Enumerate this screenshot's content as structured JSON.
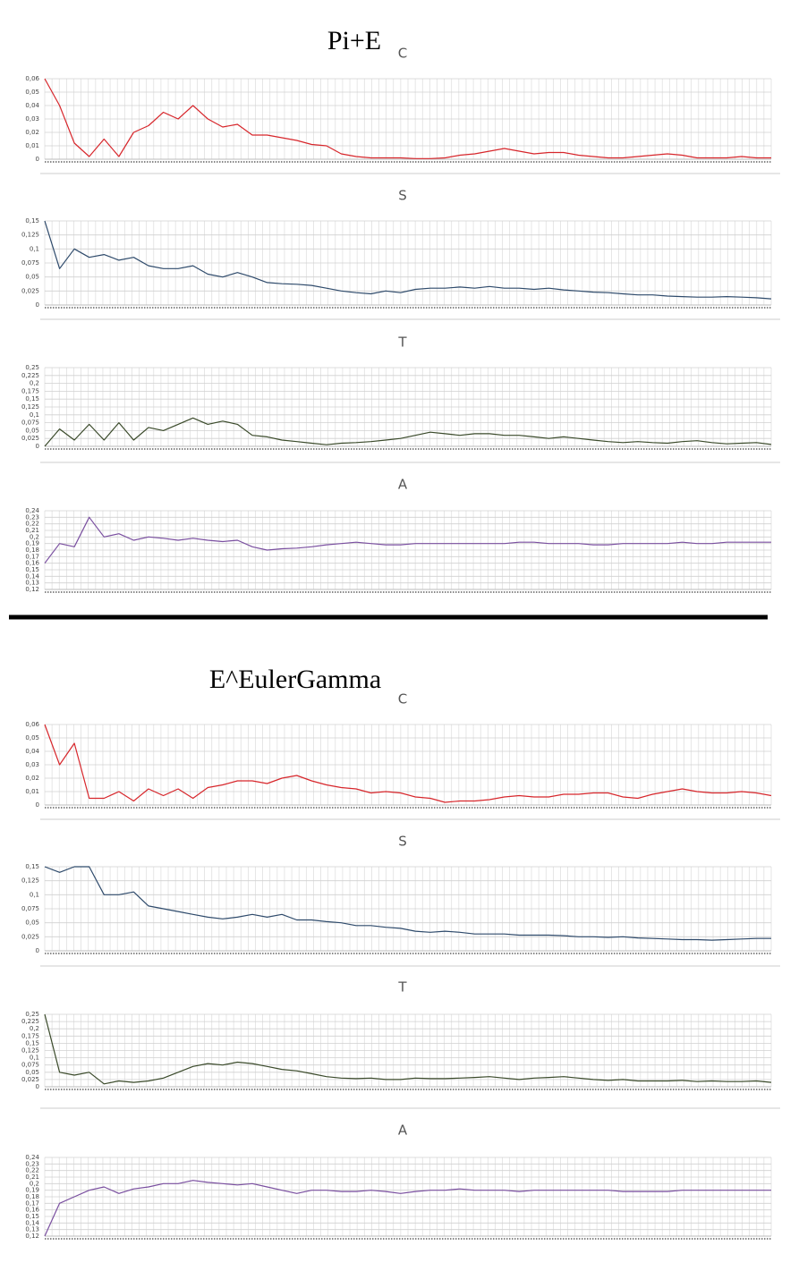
{
  "headings": [
    "Pi+E",
    "E^EulerGamma"
  ],
  "chart_data": [
    {
      "type": "line",
      "title": "C",
      "ylim": [
        0,
        0.06
      ],
      "grid": true,
      "yticks": [
        0,
        {
          "value": 0.01,
          "label": "0,01"
        },
        {
          "value": 0.02,
          "label": "0,02"
        },
        {
          "value": 0.03,
          "label": "0,03"
        },
        {
          "value": 0.04,
          "label": "0,04"
        },
        {
          "value": 0.05,
          "label": "0,05"
        },
        {
          "value": 0.06,
          "label": "0,06"
        }
      ],
      "series": [
        {
          "color": "#d7262b",
          "values": [
            0.06,
            0.04,
            0.012,
            0.002,
            0.015,
            0.002,
            0.02,
            0.025,
            0.035,
            0.03,
            0.04,
            0.03,
            0.024,
            0.026,
            0.018,
            0.018,
            0.016,
            0.014,
            0.011,
            0.01,
            0.004,
            0.002,
            0.001,
            0.001,
            0.001,
            0.0005,
            0.0005,
            0.001,
            0.003,
            0.004,
            0.006,
            0.008,
            0.006,
            0.004,
            0.005,
            0.005,
            0.003,
            0.002,
            0.001,
            0.001,
            0.002,
            0.003,
            0.004,
            0.003,
            0.001,
            0.001,
            0.001,
            0.002,
            0.001,
            0.001
          ]
        }
      ]
    },
    {
      "type": "line",
      "title": "S",
      "ylim": [
        0,
        0.15
      ],
      "grid": true,
      "yticks": [
        0,
        {
          "value": 0.025,
          "label": "0,025"
        },
        {
          "value": 0.05,
          "label": "0,05"
        },
        {
          "value": 0.075,
          "label": "0,075"
        },
        {
          "value": 0.1,
          "label": "0,1"
        },
        {
          "value": 0.125,
          "label": "0,125"
        },
        {
          "value": 0.15,
          "label": "0,15"
        }
      ],
      "series": [
        {
          "color": "#2e4a6b",
          "values": [
            0.15,
            0.065,
            0.1,
            0.085,
            0.09,
            0.08,
            0.085,
            0.07,
            0.065,
            0.065,
            0.07,
            0.055,
            0.05,
            0.058,
            0.05,
            0.04,
            0.038,
            0.037,
            0.035,
            0.03,
            0.025,
            0.022,
            0.02,
            0.025,
            0.022,
            0.028,
            0.03,
            0.03,
            0.032,
            0.03,
            0.033,
            0.03,
            0.03,
            0.028,
            0.03,
            0.027,
            0.025,
            0.023,
            0.022,
            0.02,
            0.018,
            0.018,
            0.016,
            0.015,
            0.014,
            0.014,
            0.015,
            0.014,
            0.013,
            0.011
          ]
        }
      ]
    },
    {
      "type": "line",
      "title": "T",
      "ylim": [
        0,
        0.25
      ],
      "grid": true,
      "yticks": [
        0,
        {
          "value": 0.025,
          "label": "0,025"
        },
        {
          "value": 0.05,
          "label": "0,05"
        },
        {
          "value": 0.075,
          "label": "0,075"
        },
        {
          "value": 0.1,
          "label": "0,1"
        },
        {
          "value": 0.125,
          "label": "0,125"
        },
        {
          "value": 0.15,
          "label": "0,15"
        },
        {
          "value": 0.175,
          "label": "0,175"
        },
        {
          "value": 0.2,
          "label": "0,2"
        },
        {
          "value": 0.225,
          "label": "0,225"
        },
        {
          "value": 0.25,
          "label": "0,25"
        }
      ],
      "series": [
        {
          "color": "#3a4a2a",
          "values": [
            0.0,
            0.055,
            0.02,
            0.07,
            0.02,
            0.075,
            0.02,
            0.06,
            0.05,
            0.07,
            0.09,
            0.07,
            0.08,
            0.07,
            0.035,
            0.03,
            0.02,
            0.015,
            0.01,
            0.005,
            0.01,
            0.012,
            0.015,
            0.02,
            0.025,
            0.035,
            0.045,
            0.04,
            0.035,
            0.04,
            0.04,
            0.035,
            0.035,
            0.03,
            0.025,
            0.03,
            0.025,
            0.02,
            0.015,
            0.012,
            0.015,
            0.012,
            0.01,
            0.015,
            0.018,
            0.012,
            0.008,
            0.01,
            0.012,
            0.006
          ]
        }
      ]
    },
    {
      "type": "line",
      "title": "A",
      "ylim": [
        0.12,
        0.24
      ],
      "grid": true,
      "yticks": [
        {
          "value": 0.12,
          "label": "0,12"
        },
        {
          "value": 0.13,
          "label": "0,13"
        },
        {
          "value": 0.14,
          "label": "0,14"
        },
        {
          "value": 0.15,
          "label": "0,15"
        },
        {
          "value": 0.16,
          "label": "0,16"
        },
        {
          "value": 0.17,
          "label": "0,17"
        },
        {
          "value": 0.18,
          "label": "0,18"
        },
        {
          "value": 0.19,
          "label": "0,19"
        },
        {
          "value": 0.2,
          "label": "0,2"
        },
        {
          "value": 0.21,
          "label": "0,21"
        },
        {
          "value": 0.22,
          "label": "0,22"
        },
        {
          "value": 0.23,
          "label": "0,23"
        },
        {
          "value": 0.24,
          "label": "0,24"
        }
      ],
      "series": [
        {
          "color": "#7a4fa0",
          "values": [
            0.16,
            0.19,
            0.185,
            0.23,
            0.2,
            0.205,
            0.195,
            0.2,
            0.198,
            0.195,
            0.198,
            0.195,
            0.193,
            0.195,
            0.185,
            0.18,
            0.182,
            0.183,
            0.185,
            0.188,
            0.19,
            0.192,
            0.19,
            0.188,
            0.188,
            0.19,
            0.19,
            0.19,
            0.19,
            0.19,
            0.19,
            0.19,
            0.192,
            0.192,
            0.19,
            0.19,
            0.19,
            0.188,
            0.188,
            0.19,
            0.19,
            0.19,
            0.19,
            0.192,
            0.19,
            0.19,
            0.192,
            0.192,
            0.192,
            0.192
          ]
        }
      ]
    },
    {
      "type": "line",
      "title": "C",
      "ylim": [
        0,
        0.06
      ],
      "grid": true,
      "yticks": [
        0,
        {
          "value": 0.01,
          "label": "0,01"
        },
        {
          "value": 0.02,
          "label": "0,02"
        },
        {
          "value": 0.03,
          "label": "0,03"
        },
        {
          "value": 0.04,
          "label": "0,04"
        },
        {
          "value": 0.05,
          "label": "0,05"
        },
        {
          "value": 0.06,
          "label": "0,06"
        }
      ],
      "series": [
        {
          "color": "#d7262b",
          "values": [
            0.06,
            0.03,
            0.046,
            0.005,
            0.005,
            0.01,
            0.003,
            0.012,
            0.007,
            0.012,
            0.005,
            0.013,
            0.015,
            0.018,
            0.018,
            0.016,
            0.02,
            0.022,
            0.018,
            0.015,
            0.013,
            0.012,
            0.009,
            0.01,
            0.009,
            0.006,
            0.005,
            0.002,
            0.003,
            0.003,
            0.004,
            0.006,
            0.007,
            0.006,
            0.006,
            0.008,
            0.008,
            0.009,
            0.009,
            0.006,
            0.005,
            0.008,
            0.01,
            0.012,
            0.01,
            0.009,
            0.009,
            0.01,
            0.009,
            0.007
          ]
        }
      ]
    },
    {
      "type": "line",
      "title": "S",
      "ylim": [
        0,
        0.15
      ],
      "grid": true,
      "yticks": [
        0,
        {
          "value": 0.025,
          "label": "0,025"
        },
        {
          "value": 0.05,
          "label": "0,05"
        },
        {
          "value": 0.075,
          "label": "0,075"
        },
        {
          "value": 0.1,
          "label": "0,1"
        },
        {
          "value": 0.125,
          "label": "0,125"
        },
        {
          "value": 0.15,
          "label": "0,15"
        }
      ],
      "series": [
        {
          "color": "#2e4a6b",
          "values": [
            0.15,
            0.14,
            0.15,
            0.15,
            0.1,
            0.1,
            0.105,
            0.08,
            0.075,
            0.07,
            0.065,
            0.06,
            0.057,
            0.06,
            0.065,
            0.06,
            0.065,
            0.055,
            0.055,
            0.052,
            0.05,
            0.045,
            0.045,
            0.042,
            0.04,
            0.035,
            0.033,
            0.035,
            0.033,
            0.03,
            0.03,
            0.03,
            0.028,
            0.028,
            0.028,
            0.027,
            0.025,
            0.025,
            0.024,
            0.025,
            0.023,
            0.022,
            0.021,
            0.02,
            0.02,
            0.019,
            0.02,
            0.021,
            0.022,
            0.022
          ]
        }
      ]
    },
    {
      "type": "line",
      "title": "T",
      "ylim": [
        0,
        0.25
      ],
      "grid": true,
      "yticks": [
        0,
        {
          "value": 0.025,
          "label": "0,025"
        },
        {
          "value": 0.05,
          "label": "0,05"
        },
        {
          "value": 0.075,
          "label": "0,075"
        },
        {
          "value": 0.1,
          "label": "0,1"
        },
        {
          "value": 0.125,
          "label": "0,125"
        },
        {
          "value": 0.15,
          "label": "0,15"
        },
        {
          "value": 0.175,
          "label": "0,175"
        },
        {
          "value": 0.2,
          "label": "0,2"
        },
        {
          "value": 0.225,
          "label": "0,225"
        },
        {
          "value": 0.25,
          "label": "0,25"
        }
      ],
      "series": [
        {
          "color": "#3a4a2a",
          "values": [
            0.25,
            0.05,
            0.04,
            0.05,
            0.01,
            0.02,
            0.015,
            0.02,
            0.03,
            0.05,
            0.07,
            0.08,
            0.075,
            0.085,
            0.08,
            0.07,
            0.06,
            0.055,
            0.045,
            0.035,
            0.03,
            0.028,
            0.03,
            0.025,
            0.025,
            0.03,
            0.028,
            0.028,
            0.03,
            0.032,
            0.035,
            0.03,
            0.025,
            0.03,
            0.032,
            0.035,
            0.03,
            0.025,
            0.022,
            0.025,
            0.02,
            0.02,
            0.02,
            0.022,
            0.018,
            0.02,
            0.018,
            0.018,
            0.02,
            0.015
          ]
        }
      ]
    },
    {
      "type": "line",
      "title": "A",
      "ylim": [
        0.12,
        0.24
      ],
      "grid": true,
      "yticks": [
        {
          "value": 0.12,
          "label": "0,12"
        },
        {
          "value": 0.13,
          "label": "0,13"
        },
        {
          "value": 0.14,
          "label": "0,14"
        },
        {
          "value": 0.15,
          "label": "0,15"
        },
        {
          "value": 0.16,
          "label": "0,16"
        },
        {
          "value": 0.17,
          "label": "0,17"
        },
        {
          "value": 0.18,
          "label": "0,18"
        },
        {
          "value": 0.19,
          "label": "0,19"
        },
        {
          "value": 0.2,
          "label": "0,2"
        },
        {
          "value": 0.21,
          "label": "0,21"
        },
        {
          "value": 0.22,
          "label": "0,22"
        },
        {
          "value": 0.23,
          "label": "0,23"
        },
        {
          "value": 0.24,
          "label": "0,24"
        }
      ],
      "series": [
        {
          "color": "#7a4fa0",
          "values": [
            0.12,
            0.17,
            0.18,
            0.19,
            0.195,
            0.185,
            0.192,
            0.195,
            0.2,
            0.2,
            0.205,
            0.202,
            0.2,
            0.198,
            0.2,
            0.195,
            0.19,
            0.185,
            0.19,
            0.19,
            0.188,
            0.188,
            0.19,
            0.188,
            0.185,
            0.188,
            0.19,
            0.19,
            0.192,
            0.19,
            0.19,
            0.19,
            0.188,
            0.19,
            0.19,
            0.19,
            0.19,
            0.19,
            0.19,
            0.188,
            0.188,
            0.188,
            0.188,
            0.19,
            0.19,
            0.19,
            0.19,
            0.19,
            0.19,
            0.19
          ]
        }
      ]
    }
  ]
}
